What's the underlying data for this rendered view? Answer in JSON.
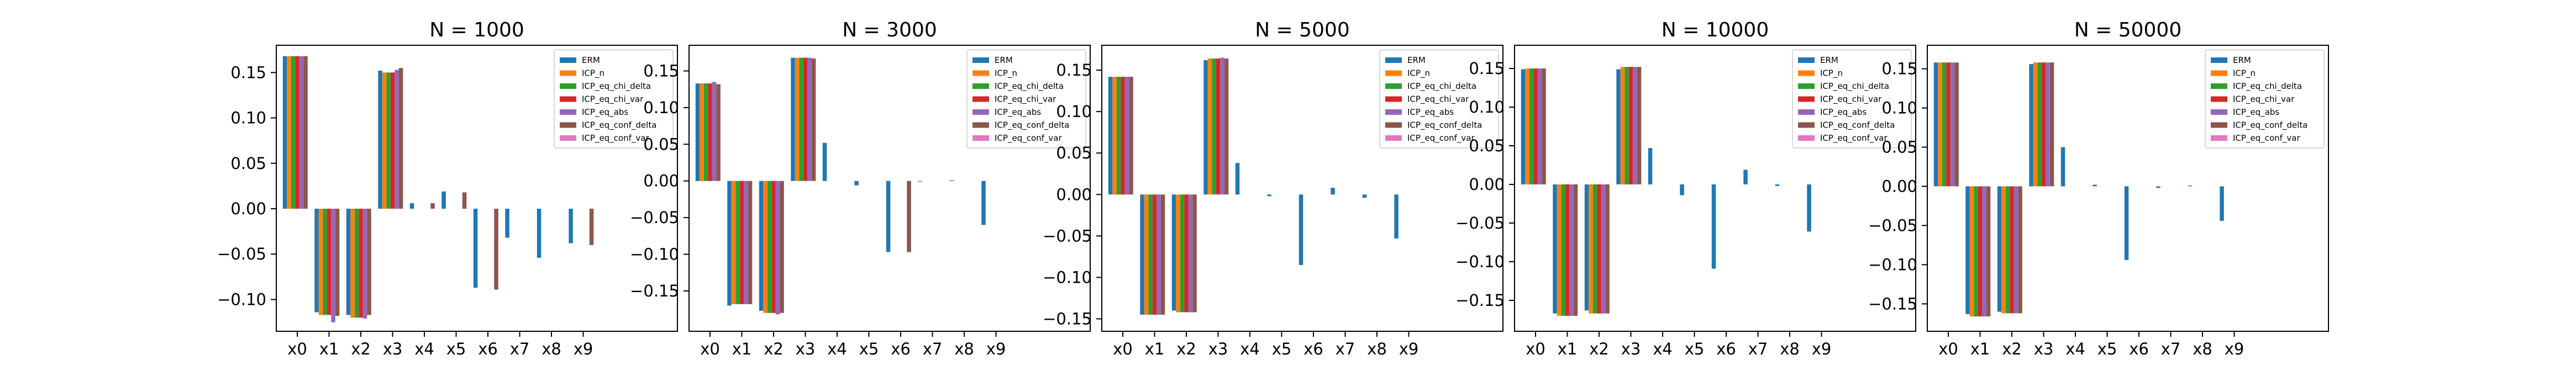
{
  "series_names": [
    "ERM",
    "ICP_n",
    "ICP_eq_chi_delta",
    "ICP_eq_chi_var",
    "ICP_eq_abs",
    "ICP_eq_conf_delta",
    "ICP_eq_conf_var"
  ],
  "colors": [
    "#1f77b4",
    "#ff7f0e",
    "#2ca02c",
    "#d62728",
    "#9467bd",
    "#8c564b",
    "#e377c2"
  ],
  "chart_data": [
    {
      "type": "bar",
      "title": "N = 1000",
      "categories": [
        "x0",
        "x1",
        "x2",
        "x3",
        "x4",
        "x5",
        "x6",
        "x7",
        "x8",
        "x9"
      ],
      "ylim": [
        -0.135,
        0.18
      ],
      "yticks": [
        -0.1,
        -0.05,
        0.0,
        0.05,
        0.1,
        0.15
      ],
      "ytick_labels": [
        "−0.10",
        "−0.05",
        "0.00",
        "0.05",
        "0.10",
        "0.15"
      ],
      "legend": "top-right",
      "series": [
        {
          "name": "ERM",
          "values": [
            0.168,
            -0.114,
            -0.117,
            0.152,
            0.006,
            0.019,
            -0.087,
            -0.032,
            -0.054,
            -0.038
          ]
        },
        {
          "name": "ICP_n",
          "values": [
            0.168,
            -0.117,
            -0.12,
            0.15,
            0,
            0,
            0,
            0,
            0,
            0
          ]
        },
        {
          "name": "ICP_eq_chi_delta",
          "values": [
            0.168,
            -0.117,
            -0.12,
            0.15,
            0,
            0,
            0,
            0,
            0,
            0
          ]
        },
        {
          "name": "ICP_eq_chi_var",
          "values": [
            0.168,
            -0.117,
            -0.12,
            0.15,
            0,
            0,
            0,
            0,
            0,
            0
          ]
        },
        {
          "name": "ICP_eq_abs",
          "values": [
            0.168,
            -0.125,
            -0.121,
            0.153,
            0,
            0,
            0,
            0,
            0,
            0
          ]
        },
        {
          "name": "ICP_eq_conf_delta",
          "values": [
            0.168,
            -0.118,
            -0.117,
            0.155,
            0.006,
            0.018,
            -0.089,
            0,
            0,
            -0.04
          ]
        },
        {
          "name": "ICP_eq_conf_var",
          "values": [
            0,
            0,
            0,
            0,
            0,
            0,
            0,
            0,
            0,
            0
          ]
        }
      ]
    },
    {
      "type": "bar",
      "title": "N = 3000",
      "categories": [
        "x0",
        "x1",
        "x2",
        "x3",
        "x4",
        "x5",
        "x6",
        "x7",
        "x8",
        "x9"
      ],
      "ylim": [
        -0.205,
        0.185
      ],
      "yticks": [
        -0.15,
        -0.1,
        -0.05,
        0.0,
        0.05,
        0.1,
        0.15
      ],
      "ytick_labels": [
        "−0.15",
        "−0.10",
        "−0.05",
        "0.00",
        "0.05",
        "0.10",
        "0.15"
      ],
      "legend": "top-right",
      "series": [
        {
          "name": "ERM",
          "values": [
            0.133,
            -0.17,
            -0.177,
            0.168,
            0.052,
            -0.006,
            -0.097,
            -0.001,
            0.001,
            -0.06
          ]
        },
        {
          "name": "ICP_n",
          "values": [
            0.133,
            -0.168,
            -0.18,
            0.168,
            0,
            0,
            0,
            0,
            0,
            0
          ]
        },
        {
          "name": "ICP_eq_chi_delta",
          "values": [
            0.133,
            -0.168,
            -0.18,
            0.168,
            0,
            0,
            0,
            0,
            0,
            0
          ]
        },
        {
          "name": "ICP_eq_chi_var",
          "values": [
            0.133,
            -0.168,
            -0.18,
            0.168,
            0,
            0,
            0,
            0,
            0,
            0
          ]
        },
        {
          "name": "ICP_eq_abs",
          "values": [
            0.135,
            -0.168,
            -0.182,
            0.168,
            0,
            0,
            0,
            0,
            0,
            0
          ]
        },
        {
          "name": "ICP_eq_conf_delta",
          "values": [
            0.132,
            -0.168,
            -0.18,
            0.167,
            0,
            0,
            -0.097,
            0,
            0,
            0
          ]
        },
        {
          "name": "ICP_eq_conf_var",
          "values": [
            0,
            0,
            0,
            0,
            0,
            0,
            0,
            0,
            0,
            0
          ]
        }
      ]
    },
    {
      "type": "bar",
      "title": "N = 5000",
      "categories": [
        "x0",
        "x1",
        "x2",
        "x3",
        "x4",
        "x5",
        "x6",
        "x7",
        "x8",
        "x9"
      ],
      "ylim": [
        -0.165,
        0.18
      ],
      "yticks": [
        -0.15,
        -0.1,
        -0.05,
        0.0,
        0.05,
        0.1,
        0.15
      ],
      "ytick_labels": [
        "−0.15",
        "−0.10",
        "−0.05",
        "0.00",
        "0.05",
        "0.10",
        "0.15"
      ],
      "legend": "top-right",
      "series": [
        {
          "name": "ERM",
          "values": [
            0.142,
            -0.145,
            -0.14,
            0.162,
            0.038,
            -0.002,
            -0.085,
            0.008,
            -0.004,
            -0.053
          ]
        },
        {
          "name": "ICP_n",
          "values": [
            0.142,
            -0.145,
            -0.142,
            0.164,
            0,
            0,
            0,
            0,
            0,
            0
          ]
        },
        {
          "name": "ICP_eq_chi_delta",
          "values": [
            0.142,
            -0.145,
            -0.142,
            0.164,
            0,
            0,
            0,
            0,
            0,
            0
          ]
        },
        {
          "name": "ICP_eq_chi_var",
          "values": [
            0.142,
            -0.145,
            -0.142,
            0.164,
            0,
            0,
            0,
            0,
            0,
            0
          ]
        },
        {
          "name": "ICP_eq_abs",
          "values": [
            0.142,
            -0.145,
            -0.142,
            0.165,
            0,
            0,
            0,
            0,
            0,
            0
          ]
        },
        {
          "name": "ICP_eq_conf_delta",
          "values": [
            0.142,
            -0.145,
            -0.142,
            0.164,
            0,
            0,
            0,
            0,
            0,
            0
          ]
        },
        {
          "name": "ICP_eq_conf_var",
          "values": [
            0,
            0,
            0,
            0,
            0,
            0,
            0,
            0,
            0,
            0
          ]
        }
      ]
    },
    {
      "type": "bar",
      "title": "N = 10000",
      "categories": [
        "x0",
        "x1",
        "x2",
        "x3",
        "x4",
        "x5",
        "x6",
        "x7",
        "x8",
        "x9"
      ],
      "ylim": [
        -0.19,
        0.18
      ],
      "yticks": [
        -0.15,
        -0.1,
        -0.05,
        0.0,
        0.05,
        0.1,
        0.15
      ],
      "ytick_labels": [
        "−0.15",
        "−0.10",
        "−0.05",
        "0.00",
        "0.05",
        "0.10",
        "0.15"
      ],
      "legend": "top-right",
      "series": [
        {
          "name": "ERM",
          "values": [
            0.149,
            -0.167,
            -0.163,
            0.149,
            0.047,
            -0.014,
            -0.109,
            0.019,
            -0.002,
            -0.061
          ]
        },
        {
          "name": "ICP_n",
          "values": [
            0.15,
            -0.17,
            -0.167,
            0.152,
            0,
            0,
            0,
            0,
            0,
            0
          ]
        },
        {
          "name": "ICP_eq_chi_delta",
          "values": [
            0.15,
            -0.17,
            -0.167,
            0.152,
            0,
            0,
            0,
            0,
            0,
            0
          ]
        },
        {
          "name": "ICP_eq_chi_var",
          "values": [
            0.15,
            -0.17,
            -0.167,
            0.152,
            0,
            0,
            0,
            0,
            0,
            0
          ]
        },
        {
          "name": "ICP_eq_abs",
          "values": [
            0.15,
            -0.17,
            -0.167,
            0.152,
            0,
            0,
            0,
            0,
            0,
            0
          ]
        },
        {
          "name": "ICP_eq_conf_delta",
          "values": [
            0.15,
            -0.17,
            -0.167,
            0.152,
            0,
            0,
            0,
            0,
            0,
            0
          ]
        },
        {
          "name": "ICP_eq_conf_var",
          "values": [
            0,
            0,
            0,
            0,
            0,
            0,
            0,
            0,
            0,
            0
          ]
        }
      ]
    },
    {
      "type": "bar",
      "title": "N = 50000",
      "categories": [
        "x0",
        "x1",
        "x2",
        "x3",
        "x4",
        "x5",
        "x6",
        "x7",
        "x8",
        "x9"
      ],
      "ylim": [
        -0.185,
        0.18
      ],
      "yticks": [
        -0.15,
        -0.1,
        -0.05,
        0.0,
        0.05,
        0.1,
        0.15
      ],
      "ytick_labels": [
        "−0.15",
        "−0.10",
        "−0.05",
        "0.00",
        "0.05",
        "0.10",
        "0.15"
      ],
      "legend": "top-right",
      "series": [
        {
          "name": "ERM",
          "values": [
            0.158,
            -0.163,
            -0.16,
            0.156,
            0.05,
            0.002,
            -0.094,
            -0.002,
            0.001,
            -0.044
          ]
        },
        {
          "name": "ICP_n",
          "values": [
            0.158,
            -0.166,
            -0.162,
            0.158,
            0,
            0,
            0,
            0,
            0,
            0
          ]
        },
        {
          "name": "ICP_eq_chi_delta",
          "values": [
            0.158,
            -0.166,
            -0.162,
            0.158,
            0,
            0,
            0,
            0,
            0,
            0
          ]
        },
        {
          "name": "ICP_eq_chi_var",
          "values": [
            0.158,
            -0.166,
            -0.162,
            0.158,
            0,
            0,
            0,
            0,
            0,
            0
          ]
        },
        {
          "name": "ICP_eq_abs",
          "values": [
            0.158,
            -0.166,
            -0.162,
            0.158,
            0,
            0,
            0,
            0,
            0,
            0
          ]
        },
        {
          "name": "ICP_eq_conf_delta",
          "values": [
            0.158,
            -0.166,
            -0.162,
            0.158,
            0,
            0,
            0,
            0,
            0,
            0
          ]
        },
        {
          "name": "ICP_eq_conf_var",
          "values": [
            0,
            0,
            0,
            0,
            0,
            0,
            0,
            0,
            0,
            0
          ]
        }
      ]
    }
  ]
}
